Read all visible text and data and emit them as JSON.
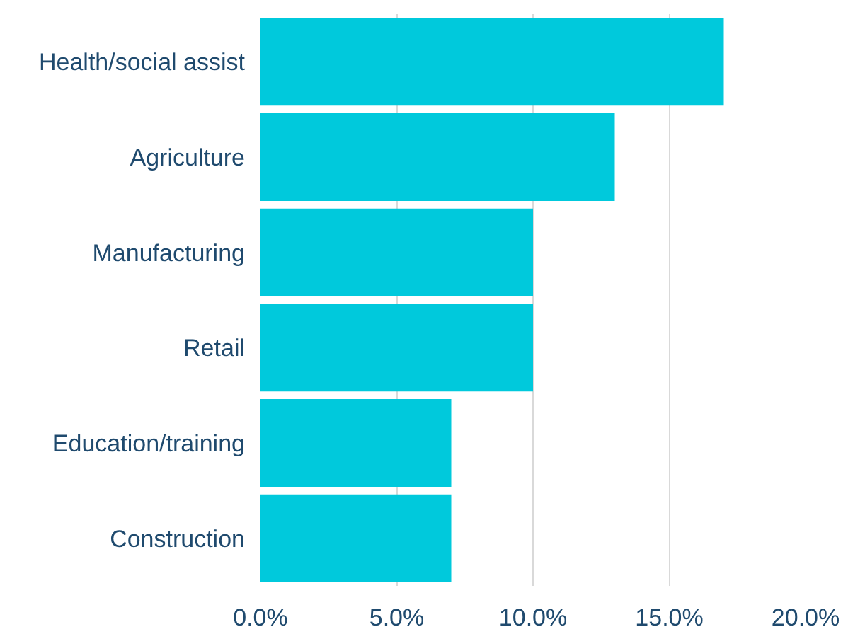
{
  "chart_data": {
    "type": "bar",
    "orientation": "horizontal",
    "categories": [
      "Health/social assist",
      "Agriculture",
      "Manufacturing",
      "Retail",
      "Education/training",
      "Construction"
    ],
    "values": [
      17,
      13,
      10,
      10,
      7,
      7
    ],
    "color": "#00c9dc",
    "xlim": [
      0,
      20
    ],
    "xticks": [
      {
        "value": 0,
        "label": "0.0%"
      },
      {
        "value": 5,
        "label": "5.0%"
      },
      {
        "value": 10,
        "label": "10.0%"
      },
      {
        "value": 15,
        "label": "15.0%"
      },
      {
        "value": 20,
        "label": "20.0%"
      }
    ],
    "grid": "x"
  }
}
